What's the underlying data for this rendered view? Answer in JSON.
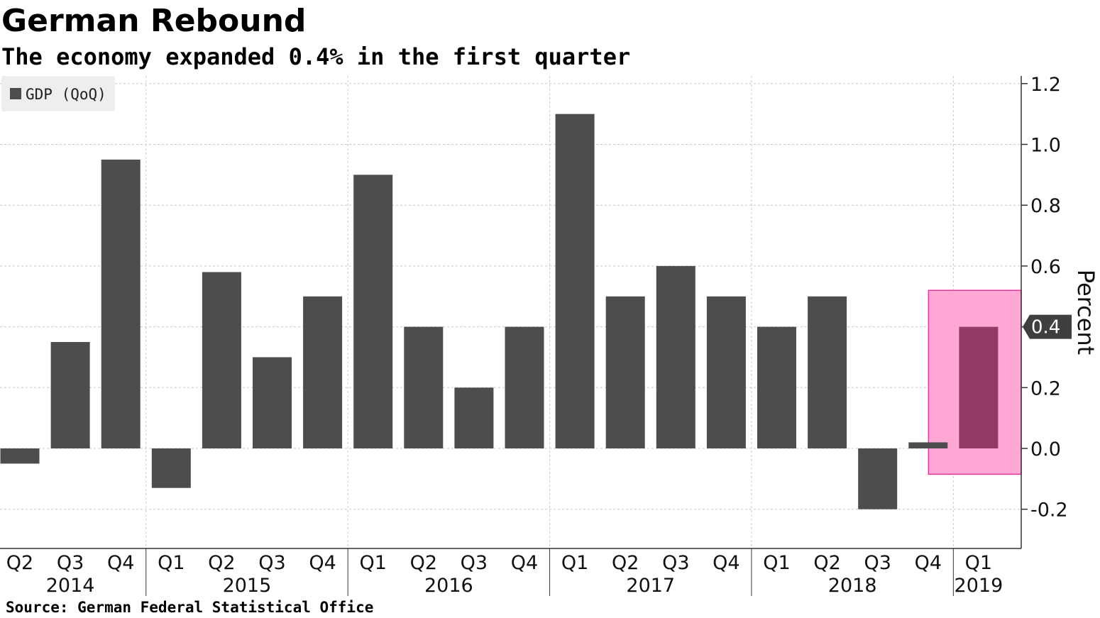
{
  "title": "German Rebound",
  "subtitle": "The economy expanded 0.4% in the first quarter",
  "source": "Source: German Federal Statistical Office",
  "colors": {
    "bar": "#4d4d4d",
    "highlight_bar": "#943a66",
    "highlight_fill": "#ffa8d6",
    "highlight_border": "#e8349a",
    "grid": "#c8c8c8",
    "axis": "#333333",
    "callout_bg": "#3f3f3f",
    "legend_bg": "#eeeeee"
  },
  "chart_data": {
    "type": "bar",
    "title": "German Rebound",
    "subtitle": "The economy expanded 0.4% in the first quarter",
    "ylabel": "Percent",
    "ylim": [
      -0.32,
      1.23
    ],
    "yticks": [
      -0.2,
      0.0,
      0.2,
      0.4,
      0.6,
      0.8,
      1.0,
      1.2
    ],
    "ytick_labels": [
      "-0.2",
      "0.0",
      "0.2",
      "0.4",
      "0.6",
      "0.8",
      "1.0",
      "1.2"
    ],
    "y_axis_side": "right",
    "grid": true,
    "legend_position": "top-left",
    "categories": [
      "Q2",
      "Q3",
      "Q4",
      "Q1",
      "Q2",
      "Q3",
      "Q4",
      "Q1",
      "Q2",
      "Q3",
      "Q4",
      "Q1",
      "Q2",
      "Q3",
      "Q4",
      "Q1",
      "Q2",
      "Q3",
      "Q4",
      "Q1"
    ],
    "years": [
      {
        "label": "2014",
        "start": 0,
        "end": 2
      },
      {
        "label": "2015",
        "start": 3,
        "end": 6
      },
      {
        "label": "2016",
        "start": 7,
        "end": 10
      },
      {
        "label": "2017",
        "start": 11,
        "end": 14
      },
      {
        "label": "2018",
        "start": 15,
        "end": 18
      },
      {
        "label": "2019",
        "start": 19,
        "end": 19
      }
    ],
    "series": [
      {
        "name": "GDP (QoQ)",
        "values": [
          -0.05,
          0.35,
          0.95,
          -0.13,
          0.58,
          0.3,
          0.5,
          0.9,
          0.4,
          0.2,
          0.4,
          1.1,
          0.5,
          0.6,
          0.5,
          0.4,
          0.5,
          -0.2,
          0.02,
          0.4
        ]
      }
    ],
    "highlight_index": 19,
    "callout": {
      "value": 0.4,
      "label": "0.4"
    }
  }
}
